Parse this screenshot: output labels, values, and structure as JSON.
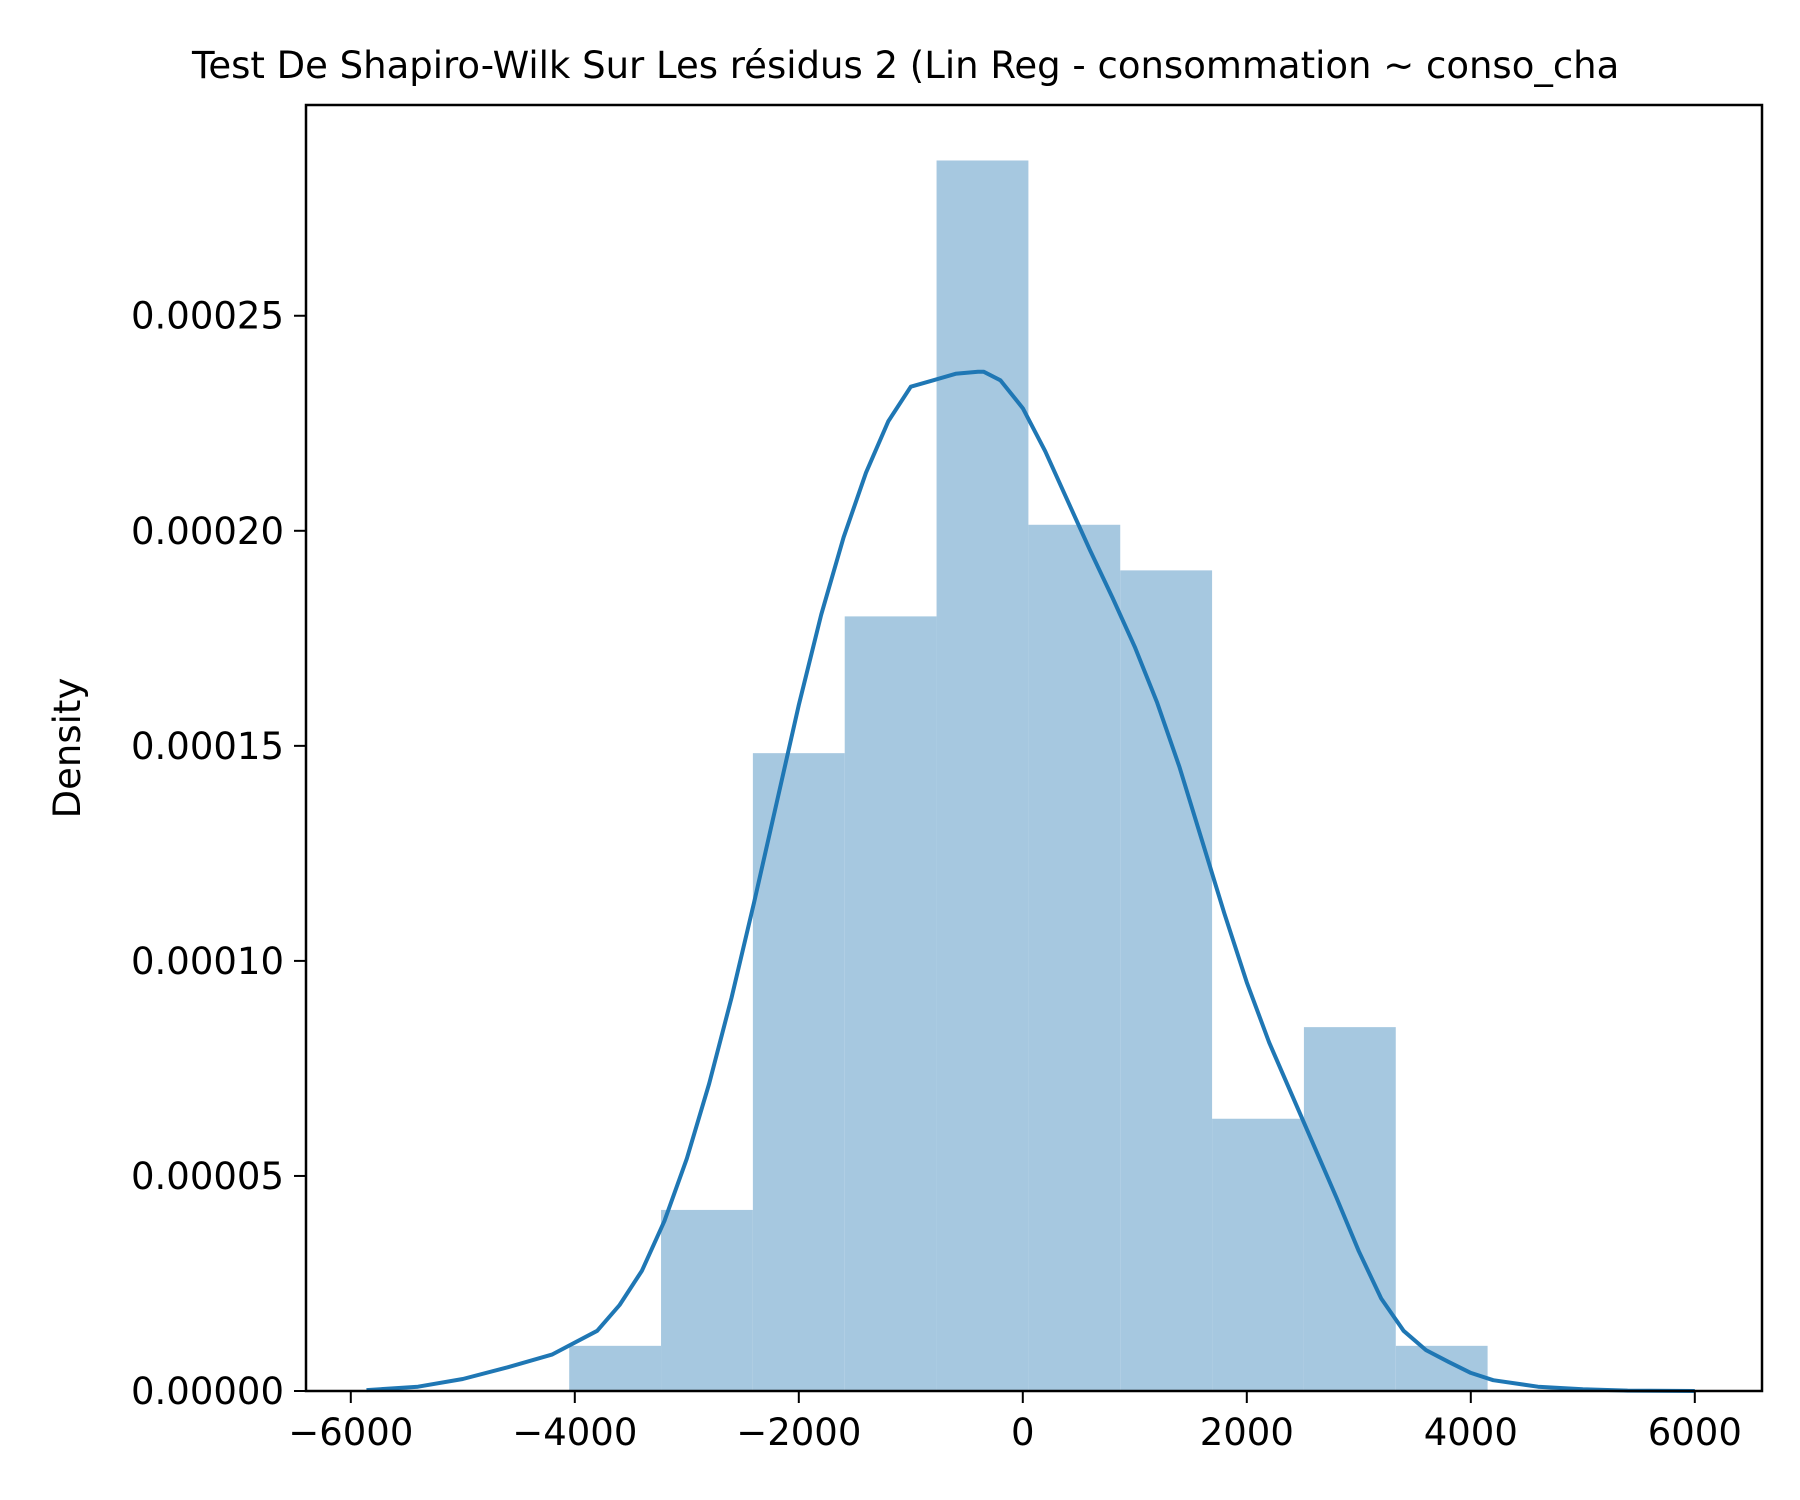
{
  "chart_data": {
    "type": "bar",
    "title": "Test De Shapiro-Wilk Sur Les résidus 2 (Lin Reg - consommation ~ conso_cha",
    "xlabel": "",
    "ylabel": "Density",
    "xlim": [
      -6400,
      6600
    ],
    "ylim": [
      0,
      0.000299
    ],
    "x_ticks": [
      -6000,
      -4000,
      -2000,
      0,
      2000,
      4000,
      6000
    ],
    "x_tick_labels": [
      "−6000",
      "−4000",
      "−2000",
      "0",
      "2000",
      "4000",
      "6000"
    ],
    "y_ticks": [
      0,
      5e-05,
      0.0001,
      0.00015,
      0.0002,
      0.00025
    ],
    "y_tick_labels": [
      "0.00000",
      "0.00005",
      "0.00010",
      "0.00015",
      "0.00020",
      "0.00025"
    ],
    "grid": false,
    "legend": "none",
    "histogram": {
      "color": "#a6c8e0",
      "bin_edges": [
        -4050,
        -3230,
        -2410,
        -1590,
        -770,
        50,
        870,
        1690,
        2510,
        3330,
        4150
      ],
      "values": [
        1.05e-05,
        4.21e-05,
        0.0001483,
        0.0001801,
        0.0002861,
        0.0002014,
        0.0001908,
        6.33e-05,
        8.46e-05,
        1.05e-05
      ]
    },
    "kde": {
      "color": "#1f77b4",
      "x": [
        -5860,
        -5400,
        -5000,
        -4600,
        -4200,
        -3800,
        -3600,
        -3400,
        -3200,
        -3000,
        -2800,
        -2600,
        -2400,
        -2200,
        -2000,
        -1800,
        -1600,
        -1400,
        -1200,
        -1000,
        -800,
        -600,
        -400,
        -350,
        -200,
        0,
        200,
        400,
        600,
        800,
        1000,
        1200,
        1400,
        1600,
        1800,
        2000,
        2200,
        2400,
        2600,
        2800,
        3000,
        3200,
        3400,
        3600,
        3800,
        4000,
        4200,
        4600,
        5000,
        5400,
        6000
      ],
      "y": [
        2e-07,
        1e-06,
        2.8e-06,
        5.5e-06,
        8.5e-06,
        1.4e-05,
        2e-05,
        2.8e-05,
        3.95e-05,
        5.4e-05,
        7.15e-05,
        9.15e-05,
        0.0001135,
        0.0001365,
        0.0001595,
        0.0001805,
        0.0001985,
        0.0002135,
        0.0002255,
        0.0002335,
        0.000235,
        0.0002365,
        0.000237,
        0.000237,
        0.000235,
        0.0002285,
        0.0002185,
        0.000207,
        0.0001955,
        0.0001845,
        0.000173,
        0.00016,
        0.000145,
        0.000128,
        0.000111,
        9.5e-05,
        8.1e-05,
        6.9e-05,
        5.7e-05,
        4.5e-05,
        3.25e-05,
        2.15e-05,
        1.4e-05,
        9.5e-06,
        6.8e-06,
        4.2e-06,
        2.5e-06,
        1e-06,
        4e-07,
        1e-07,
        0.0
      ]
    }
  }
}
